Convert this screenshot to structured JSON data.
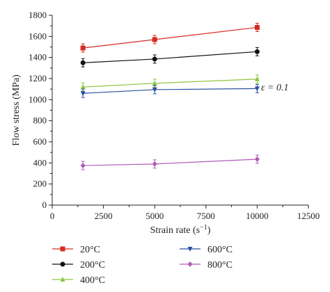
{
  "chart_data": {
    "type": "line",
    "xlabel": "Strain rate (s",
    "xlabel_sup": "−1",
    "xlabel_tail": ")",
    "ylabel": "Flow stress (MPa)",
    "xlim": [
      0,
      12500
    ],
    "ylim": [
      0,
      1800
    ],
    "xticks": [
      0,
      2500,
      5000,
      7500,
      10000,
      12500
    ],
    "yticks": [
      0,
      200,
      400,
      600,
      800,
      1000,
      1200,
      1400,
      1600,
      1800
    ],
    "x": [
      1500,
      5000,
      10000
    ],
    "annotation": "ε = 0.1",
    "legend_position": "bottom",
    "series": [
      {
        "name": "20°C",
        "color": "#d62b1f",
        "marker": "square",
        "values": [
          1490,
          1570,
          1685
        ]
      },
      {
        "name": "200°C",
        "color": "#111111",
        "marker": "circle",
        "values": [
          1350,
          1385,
          1455
        ]
      },
      {
        "name": "400°C",
        "color": "#8dc63f",
        "marker": "triangle-up",
        "values": [
          1120,
          1155,
          1195
        ]
      },
      {
        "name": "600°C",
        "color": "#2b4fa2",
        "marker": "triangle-down",
        "values": [
          1060,
          1095,
          1105
        ]
      },
      {
        "name": "800°C",
        "color": "#b05bb8",
        "marker": "diamond",
        "values": [
          375,
          390,
          435
        ]
      }
    ]
  }
}
